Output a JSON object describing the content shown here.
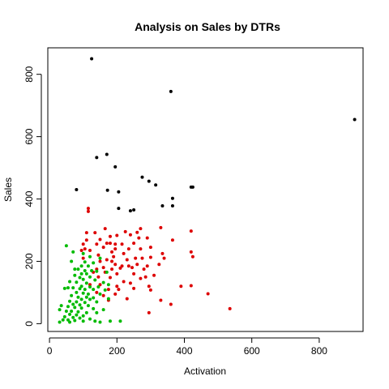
{
  "chart_data": {
    "type": "scatter",
    "title": "Analysis on Sales by DTRs",
    "xlabel": "Activation",
    "ylabel": "Sales",
    "xlim": [
      -5,
      930
    ],
    "ylim": [
      -25,
      885
    ],
    "xticks": [
      0,
      200,
      400,
      600,
      800
    ],
    "yticks": [
      0,
      200,
      400,
      600,
      800
    ],
    "grid": false,
    "legend": "none",
    "series": [
      {
        "color": "#000000",
        "points": [
          [
            125,
            850
          ],
          [
            360,
            745
          ],
          [
            905,
            655
          ],
          [
            170,
            543
          ],
          [
            140,
            533
          ],
          [
            195,
            503
          ],
          [
            275,
            470
          ],
          [
            295,
            457
          ],
          [
            315,
            445
          ],
          [
            420,
            438
          ],
          [
            425,
            438
          ],
          [
            80,
            430
          ],
          [
            172,
            428
          ],
          [
            205,
            423
          ],
          [
            365,
            402
          ],
          [
            335,
            378
          ],
          [
            365,
            378
          ],
          [
            205,
            370
          ],
          [
            240,
            362
          ],
          [
            250,
            365
          ]
        ]
      },
      {
        "color": "#dd0000",
        "points": [
          [
            115,
            370
          ],
          [
            115,
            360
          ],
          [
            165,
            305
          ],
          [
            270,
            305
          ],
          [
            330,
            308
          ],
          [
            110,
            292
          ],
          [
            135,
            292
          ],
          [
            225,
            295
          ],
          [
            260,
            293
          ],
          [
            420,
            297
          ],
          [
            240,
            285
          ],
          [
            265,
            275
          ],
          [
            290,
            275
          ],
          [
            110,
            268
          ],
          [
            150,
            270
          ],
          [
            180,
            280
          ],
          [
            200,
            283
          ],
          [
            365,
            268
          ],
          [
            100,
            255
          ],
          [
            140,
            255
          ],
          [
            170,
            258
          ],
          [
            180,
            258
          ],
          [
            195,
            255
          ],
          [
            215,
            255
          ],
          [
            250,
            258
          ],
          [
            95,
            235
          ],
          [
            105,
            240
          ],
          [
            120,
            235
          ],
          [
            160,
            245
          ],
          [
            195,
            240
          ],
          [
            235,
            240
          ],
          [
            270,
            240
          ],
          [
            300,
            245
          ],
          [
            185,
            230
          ],
          [
            220,
            225
          ],
          [
            335,
            225
          ],
          [
            420,
            230
          ],
          [
            145,
            220
          ],
          [
            190,
            215
          ],
          [
            255,
            210
          ],
          [
            300,
            213
          ],
          [
            340,
            210
          ],
          [
            425,
            215
          ],
          [
            100,
            210
          ],
          [
            150,
            200
          ],
          [
            170,
            205
          ],
          [
            185,
            200
          ],
          [
            230,
            205
          ],
          [
            275,
            210
          ],
          [
            195,
            190
          ],
          [
            215,
            185
          ],
          [
            235,
            185
          ],
          [
            260,
            190
          ],
          [
            290,
            185
          ],
          [
            325,
            190
          ],
          [
            140,
            175
          ],
          [
            160,
            180
          ],
          [
            185,
            175
          ],
          [
            210,
            178
          ],
          [
            245,
            180
          ],
          [
            280,
            175
          ],
          [
            130,
            165
          ],
          [
            165,
            165
          ],
          [
            200,
            160
          ],
          [
            250,
            160
          ],
          [
            285,
            150
          ],
          [
            310,
            155
          ],
          [
            145,
            150
          ],
          [
            180,
            148
          ],
          [
            270,
            145
          ],
          [
            220,
            135
          ],
          [
            240,
            130
          ],
          [
            120,
            125
          ],
          [
            150,
            125
          ],
          [
            200,
            120
          ],
          [
            295,
            120
          ],
          [
            390,
            120
          ],
          [
            420,
            122
          ],
          [
            175,
            110
          ],
          [
            205,
            110
          ],
          [
            250,
            113
          ],
          [
            300,
            108
          ],
          [
            140,
            100
          ],
          [
            470,
            96
          ],
          [
            195,
            95
          ],
          [
            160,
            90
          ],
          [
            230,
            80
          ],
          [
            330,
            75
          ],
          [
            175,
            75
          ],
          [
            360,
            62
          ],
          [
            535,
            48
          ],
          [
            295,
            35
          ]
        ]
      },
      {
        "color": "#00bb00",
        "points": [
          [
            50,
            250
          ],
          [
            70,
            230
          ],
          [
            100,
            225
          ],
          [
            120,
            215
          ],
          [
            150,
            210
          ],
          [
            65,
            200
          ],
          [
            105,
            198
          ],
          [
            130,
            195
          ],
          [
            95,
            185
          ],
          [
            115,
            185
          ],
          [
            85,
            175
          ],
          [
            75,
            175
          ],
          [
            105,
            170
          ],
          [
            125,
            170
          ],
          [
            140,
            168
          ],
          [
            95,
            160
          ],
          [
            110,
            160
          ],
          [
            170,
            165
          ],
          [
            75,
            155
          ],
          [
            120,
            150
          ],
          [
            90,
            148
          ],
          [
            100,
            142
          ],
          [
            135,
            140
          ],
          [
            60,
            135
          ],
          [
            80,
            133
          ],
          [
            110,
            130
          ],
          [
            160,
            132
          ],
          [
            175,
            125
          ],
          [
            95,
            120
          ],
          [
            120,
            118
          ],
          [
            145,
            118
          ],
          [
            45,
            113
          ],
          [
            55,
            115
          ],
          [
            70,
            115
          ],
          [
            90,
            112
          ],
          [
            105,
            110
          ],
          [
            130,
            110
          ],
          [
            165,
            108
          ],
          [
            80,
            100
          ],
          [
            100,
            98
          ],
          [
            115,
            95
          ],
          [
            150,
            95
          ],
          [
            65,
            90
          ],
          [
            85,
            85
          ],
          [
            110,
            85
          ],
          [
            130,
            83
          ],
          [
            175,
            80
          ],
          [
            95,
            78
          ],
          [
            120,
            78
          ],
          [
            60,
            72
          ],
          [
            80,
            70
          ],
          [
            105,
            68
          ],
          [
            140,
            70
          ],
          [
            70,
            62
          ],
          [
            90,
            60
          ],
          [
            115,
            58
          ],
          [
            35,
            58
          ],
          [
            55,
            55
          ],
          [
            75,
            52
          ],
          [
            95,
            50
          ],
          [
            130,
            48
          ],
          [
            160,
            45
          ],
          [
            30,
            45
          ],
          [
            50,
            40
          ],
          [
            65,
            40
          ],
          [
            85,
            38
          ],
          [
            110,
            35
          ],
          [
            140,
            35
          ],
          [
            60,
            30
          ],
          [
            80,
            28
          ],
          [
            100,
            25
          ],
          [
            45,
            22
          ],
          [
            70,
            20
          ],
          [
            90,
            18
          ],
          [
            120,
            15
          ],
          [
            40,
            12
          ],
          [
            55,
            12
          ],
          [
            75,
            10
          ],
          [
            100,
            8
          ],
          [
            135,
            8
          ],
          [
            180,
            8
          ],
          [
            210,
            8
          ],
          [
            60,
            5
          ],
          [
            30,
            5
          ],
          [
            150,
            5
          ]
        ]
      }
    ]
  }
}
